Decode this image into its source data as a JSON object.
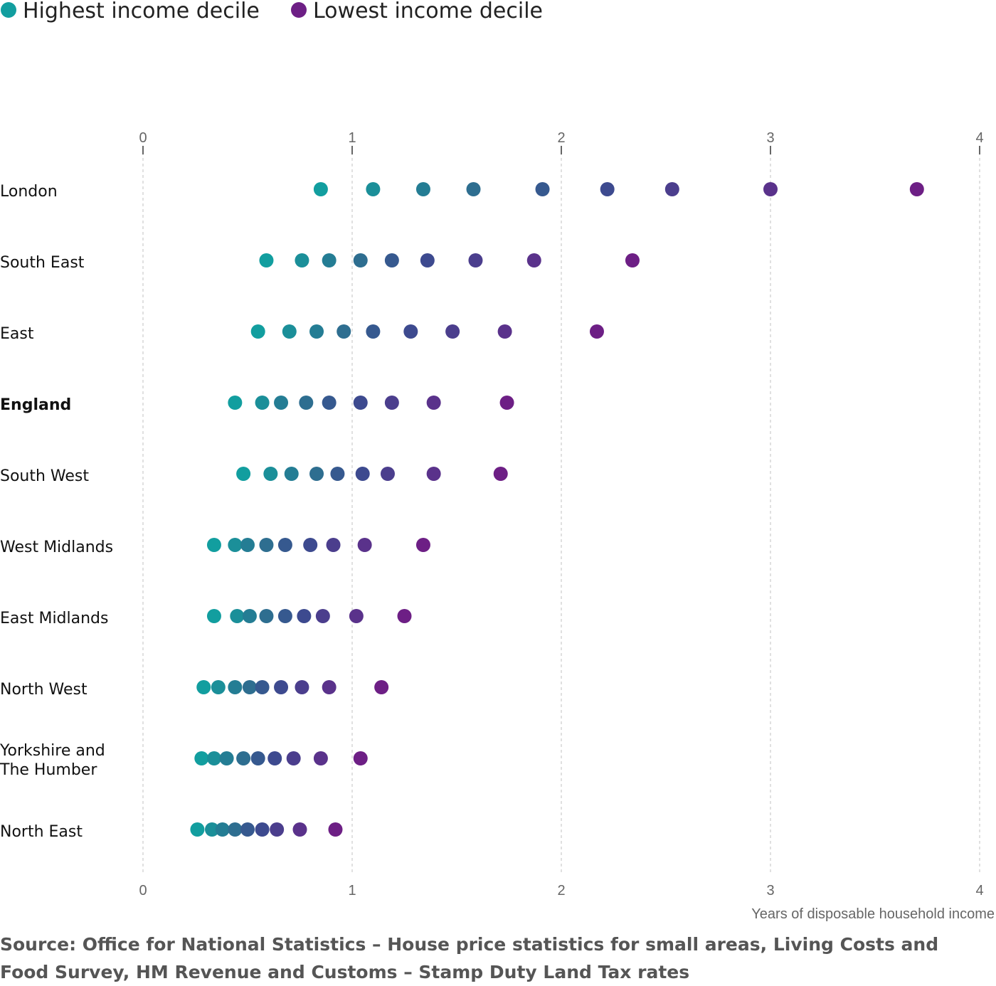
{
  "chart_data": {
    "type": "scatter",
    "xlabel": "Years of disposable household income",
    "xlim": [
      0,
      4
    ],
    "x_ticks": [
      0,
      1,
      2,
      3,
      4
    ],
    "x_tick_labels": [
      "0",
      "1",
      "2",
      "3",
      "4"
    ],
    "grid": "vertical dashed",
    "legend_position": "top-left",
    "legend": [
      {
        "label": "Highest income decile",
        "color": "#129e9f"
      },
      {
        "label": "Lowest income decile",
        "color": "#6d1f85"
      }
    ],
    "decile_colors": [
      "#129e9f",
      "#1b8f99",
      "#247d94",
      "#2e6e90",
      "#36598f",
      "#3d4a8f",
      "#4b3e8d",
      "#5a328b",
      "#6d1f85"
    ],
    "regions": [
      {
        "name": "London",
        "bold": false,
        "values": [
          0.85,
          1.1,
          1.34,
          1.58,
          1.91,
          2.22,
          2.53,
          3.0,
          3.7
        ]
      },
      {
        "name": "South East",
        "bold": false,
        "values": [
          0.59,
          0.76,
          0.89,
          1.04,
          1.19,
          1.36,
          1.59,
          1.87,
          2.34
        ]
      },
      {
        "name": "East",
        "bold": false,
        "values": [
          0.55,
          0.7,
          0.83,
          0.96,
          1.1,
          1.28,
          1.48,
          1.73,
          2.17
        ]
      },
      {
        "name": "England",
        "bold": true,
        "values": [
          0.44,
          0.57,
          0.66,
          0.78,
          0.89,
          1.04,
          1.19,
          1.39,
          1.74
        ]
      },
      {
        "name": "South West",
        "bold": false,
        "values": [
          0.48,
          0.61,
          0.71,
          0.83,
          0.93,
          1.05,
          1.17,
          1.39,
          1.71
        ]
      },
      {
        "name": "West Midlands",
        "bold": false,
        "values": [
          0.34,
          0.44,
          0.5,
          0.59,
          0.68,
          0.8,
          0.91,
          1.06,
          1.34
        ]
      },
      {
        "name": "East Midlands",
        "bold": false,
        "values": [
          0.34,
          0.45,
          0.51,
          0.59,
          0.68,
          0.77,
          0.86,
          1.02,
          1.25
        ]
      },
      {
        "name": "North West",
        "bold": false,
        "values": [
          0.29,
          0.36,
          0.44,
          0.51,
          0.57,
          0.66,
          0.76,
          0.89,
          1.14
        ]
      },
      {
        "name": "Yorkshire and The Humber",
        "bold": false,
        "label_lines": [
          "Yorkshire and",
          "The Humber"
        ],
        "values": [
          0.28,
          0.34,
          0.4,
          0.48,
          0.55,
          0.63,
          0.72,
          0.85,
          1.04
        ]
      },
      {
        "name": "North East",
        "bold": false,
        "values": [
          0.26,
          0.33,
          0.38,
          0.44,
          0.5,
          0.57,
          0.64,
          0.75,
          0.92
        ]
      }
    ]
  },
  "source": "Source: Office for National Statistics – House price statistics for small areas, Living Costs and Food Survey, HM Revenue and Customs – Stamp Duty Land Tax rates"
}
